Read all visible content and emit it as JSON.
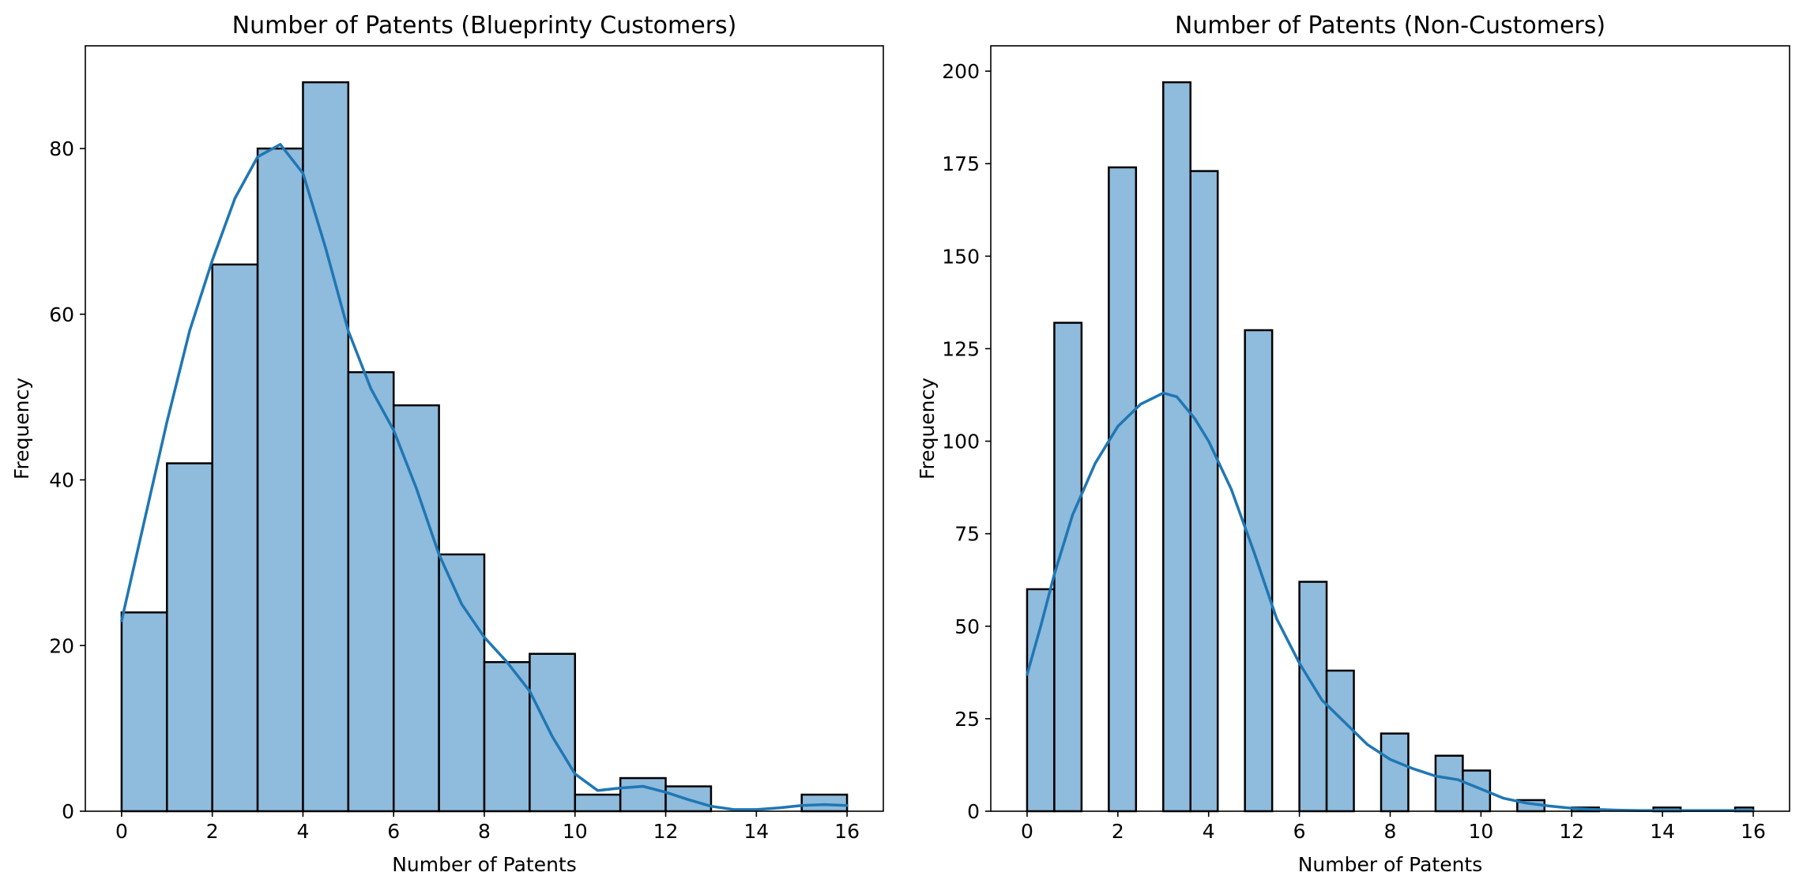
{
  "chart_data": [
    {
      "type": "bar",
      "title": "Number of Patents (Blueprinty Customers)",
      "xlabel": "Number of Patents",
      "ylabel": "Frequency",
      "xlim": [
        -0.8,
        16.8
      ],
      "ylim": [
        0,
        92.4
      ],
      "xticks": [
        0,
        2,
        4,
        6,
        8,
        10,
        12,
        14,
        16
      ],
      "yticks": [
        0,
        20,
        40,
        60,
        80
      ],
      "bins": [
        {
          "x0": 0,
          "x1": 1,
          "count": 24
        },
        {
          "x0": 1,
          "x1": 2,
          "count": 42
        },
        {
          "x0": 2,
          "x1": 3,
          "count": 66
        },
        {
          "x0": 3,
          "x1": 4,
          "count": 80
        },
        {
          "x0": 4,
          "x1": 5,
          "count": 88
        },
        {
          "x0": 5,
          "x1": 6,
          "count": 53
        },
        {
          "x0": 6,
          "x1": 7,
          "count": 49
        },
        {
          "x0": 7,
          "x1": 8,
          "count": 31
        },
        {
          "x0": 8,
          "x1": 9,
          "count": 18
        },
        {
          "x0": 9,
          "x1": 10,
          "count": 19
        },
        {
          "x0": 10,
          "x1": 11,
          "count": 2
        },
        {
          "x0": 11,
          "x1": 12,
          "count": 4
        },
        {
          "x0": 12,
          "x1": 13,
          "count": 3
        },
        {
          "x0": 15,
          "x1": 16,
          "count": 2
        }
      ],
      "kde": [
        [
          0,
          23
        ],
        [
          0.5,
          35
        ],
        [
          1,
          47
        ],
        [
          1.5,
          58
        ],
        [
          2,
          66.5
        ],
        [
          2.5,
          74
        ],
        [
          3,
          79
        ],
        [
          3.5,
          80.5
        ],
        [
          4,
          77
        ],
        [
          4.5,
          68
        ],
        [
          5,
          58
        ],
        [
          5.5,
          51
        ],
        [
          6,
          46
        ],
        [
          6.5,
          39
        ],
        [
          7,
          31
        ],
        [
          7.5,
          25
        ],
        [
          8,
          21
        ],
        [
          8.5,
          18
        ],
        [
          9,
          14.5
        ],
        [
          9.5,
          9
        ],
        [
          10,
          4.5
        ],
        [
          10.5,
          2.5
        ],
        [
          11,
          2.8
        ],
        [
          11.5,
          3
        ],
        [
          12,
          2.3
        ],
        [
          12.5,
          1.4
        ],
        [
          13,
          0.6
        ],
        [
          13.5,
          0.2
        ],
        [
          14,
          0.2
        ],
        [
          14.5,
          0.4
        ],
        [
          15,
          0.7
        ],
        [
          15.5,
          0.8
        ],
        [
          16,
          0.7
        ]
      ]
    },
    {
      "type": "bar",
      "title": "Number of Patents (Non-Customers)",
      "xlabel": "Number of Patents",
      "ylabel": "Frequency",
      "xlim": [
        -0.8,
        16.8
      ],
      "ylim": [
        0,
        206.85
      ],
      "xticks": [
        0,
        2,
        4,
        6,
        8,
        10,
        12,
        14,
        16
      ],
      "yticks": [
        0,
        25,
        50,
        75,
        100,
        125,
        150,
        175,
        200
      ],
      "bins": [
        {
          "x0": 0,
          "x1": 0.6,
          "count": 60
        },
        {
          "x0": 0.6,
          "x1": 1.2,
          "count": 132
        },
        {
          "x0": 1.8,
          "x1": 2.4,
          "count": 174
        },
        {
          "x0": 3.0,
          "x1": 3.6,
          "count": 197
        },
        {
          "x0": 3.6,
          "x1": 4.2,
          "count": 173
        },
        {
          "x0": 4.8,
          "x1": 5.4,
          "count": 130
        },
        {
          "x0": 6.0,
          "x1": 6.6,
          "count": 62
        },
        {
          "x0": 6.6,
          "x1": 7.2,
          "count": 38
        },
        {
          "x0": 7.8,
          "x1": 8.4,
          "count": 21
        },
        {
          "x0": 9.0,
          "x1": 9.6,
          "count": 15
        },
        {
          "x0": 9.6,
          "x1": 10.2,
          "count": 11
        },
        {
          "x0": 10.8,
          "x1": 11.4,
          "count": 3
        },
        {
          "x0": 12.0,
          "x1": 12.6,
          "count": 1
        },
        {
          "x0": 13.8,
          "x1": 14.4,
          "count": 1
        },
        {
          "x0": 15.6,
          "x1": 16.0,
          "count": 1
        }
      ],
      "kde": [
        [
          0,
          37
        ],
        [
          0.3,
          50
        ],
        [
          0.6,
          64
        ],
        [
          1,
          80
        ],
        [
          1.5,
          94
        ],
        [
          2,
          104
        ],
        [
          2.5,
          110
        ],
        [
          3,
          113
        ],
        [
          3.3,
          112
        ],
        [
          3.7,
          106
        ],
        [
          4,
          100
        ],
        [
          4.5,
          87
        ],
        [
          5,
          70
        ],
        [
          5.5,
          52
        ],
        [
          6,
          40
        ],
        [
          6.5,
          30
        ],
        [
          7,
          24
        ],
        [
          7.5,
          18
        ],
        [
          8,
          14
        ],
        [
          8.5,
          11.5
        ],
        [
          9,
          9.5
        ],
        [
          9.5,
          8.5
        ],
        [
          10,
          6
        ],
        [
          10.5,
          3.5
        ],
        [
          11,
          2.2
        ],
        [
          11.5,
          1.4
        ],
        [
          12,
          0.8
        ],
        [
          12.5,
          0.5
        ],
        [
          13,
          0.3
        ],
        [
          13.5,
          0.2
        ],
        [
          14,
          0.2
        ],
        [
          14.5,
          0.2
        ],
        [
          15,
          0.2
        ],
        [
          15.5,
          0.2
        ],
        [
          16,
          0.2
        ]
      ]
    }
  ]
}
